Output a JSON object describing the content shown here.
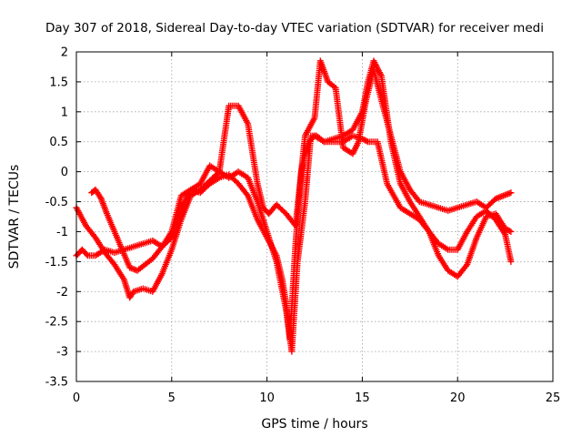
{
  "chart_data": {
    "type": "scatter",
    "title": "Day 307 of 2018, Sidereal Day-to-day VTEC variation (SDTVAR) for receiver medi",
    "xlabel": "GPS time / hours",
    "ylabel": "SDTVAR / TECUs",
    "xlim": [
      0,
      25
    ],
    "ylim": [
      -3.5,
      2
    ],
    "xticks": [
      "0",
      "5",
      "10",
      "15",
      "20",
      "25"
    ],
    "yticks": [
      "-3.5",
      "-3",
      "-2.5",
      "-2",
      "-1.5",
      "-1",
      "-0.5",
      "0",
      "0.5",
      "1",
      "1.5",
      "2"
    ],
    "grid": true,
    "marker": "+",
    "color": "#ff0000",
    "series": [
      {
        "x": [
          0.0,
          0.3,
          0.6,
          1.0,
          1.5,
          2.0,
          2.5,
          3.0,
          3.5,
          4.0,
          4.5,
          5.0,
          5.5,
          6.0,
          6.5,
          7.0,
          7.5,
          8.0,
          8.5,
          9.0,
          9.5,
          10.0,
          10.5,
          10.8,
          11.0,
          11.2,
          11.5,
          11.8,
          12.0,
          12.2,
          12.5,
          13.0,
          13.5,
          14.0,
          14.5,
          15.0,
          15.3,
          15.6,
          16.0,
          16.5,
          17.0,
          17.5,
          18.0,
          18.5,
          19.0,
          19.5,
          20.0,
          20.5,
          21.0,
          21.5,
          22.0,
          22.5,
          22.8
        ],
        "y": [
          -1.4,
          -1.3,
          -1.4,
          -1.4,
          -1.3,
          -1.35,
          -1.3,
          -1.25,
          -1.2,
          -1.15,
          -1.25,
          -1.1,
          -0.6,
          -0.3,
          -0.35,
          -0.2,
          -0.1,
          -0.05,
          -0.2,
          -0.4,
          -0.8,
          -1.1,
          -1.4,
          -1.8,
          -2.2,
          -2.8,
          -1.2,
          0.0,
          0.3,
          0.5,
          0.6,
          0.5,
          0.55,
          0.6,
          0.7,
          1.0,
          1.5,
          1.85,
          1.6,
          0.5,
          -0.2,
          -0.5,
          -0.75,
          -1.0,
          -1.4,
          -1.65,
          -1.75,
          -1.55,
          -1.1,
          -0.75,
          -0.7,
          -0.95,
          -1.0
        ]
      },
      {
        "x": [
          0.0,
          0.5,
          1.0,
          1.5,
          2.0,
          2.5,
          2.8,
          3.0,
          3.5,
          4.0,
          4.5,
          5.0,
          5.5,
          6.0,
          6.5,
          7.0,
          7.5,
          8.0,
          8.5,
          9.0,
          9.5,
          10.0,
          10.5,
          11.0,
          11.3,
          11.6,
          12.0,
          12.3,
          12.6,
          13.0,
          13.5,
          14.0,
          14.5,
          15.0,
          15.3,
          15.8,
          16.3,
          17.0,
          17.5,
          18.0,
          18.5,
          19.0,
          19.5,
          20.0,
          20.5,
          21.0,
          21.5,
          22.0,
          22.5,
          22.8
        ],
        "y": [
          -0.6,
          -0.9,
          -1.1,
          -1.35,
          -1.55,
          -1.8,
          -2.1,
          -2.0,
          -1.95,
          -2.0,
          -1.7,
          -1.3,
          -0.8,
          -0.4,
          -0.3,
          -0.15,
          0.0,
          -0.1,
          0.0,
          -0.1,
          -0.5,
          -1.0,
          -1.5,
          -2.3,
          -3.0,
          -1.5,
          -0.5,
          0.6,
          0.6,
          0.5,
          0.5,
          0.5,
          0.6,
          0.55,
          0.5,
          0.5,
          -0.2,
          -0.6,
          -0.7,
          -0.8,
          -1.0,
          -1.2,
          -1.3,
          -1.3,
          -1.0,
          -0.75,
          -0.65,
          -0.8,
          -1.05,
          -1.5
        ]
      },
      {
        "x": [
          0.8,
          1.0,
          1.3,
          1.6,
          2.0,
          2.4,
          2.8,
          3.2,
          3.6,
          4.0,
          4.5,
          5.0,
          5.5,
          6.0,
          6.5,
          7.0,
          7.5,
          8.0,
          8.5,
          9.0,
          9.5,
          9.8,
          10.1,
          10.5,
          11.0,
          11.5,
          12.0,
          12.5,
          12.8,
          13.2,
          13.6,
          14.0,
          14.5,
          14.8,
          15.2,
          15.6,
          16.0,
          16.5,
          17.0,
          17.5,
          18.0,
          18.5,
          19.0,
          19.5,
          20.0,
          20.5,
          21.0,
          21.5,
          22.0,
          22.4,
          22.8
        ],
        "y": [
          -0.35,
          -0.3,
          -0.45,
          -0.7,
          -1.0,
          -1.3,
          -1.6,
          -1.65,
          -1.55,
          -1.45,
          -1.25,
          -1.0,
          -0.4,
          -0.3,
          -0.2,
          0.1,
          0.0,
          1.1,
          1.1,
          0.8,
          -0.2,
          -0.6,
          -0.7,
          -0.55,
          -0.7,
          -0.9,
          0.6,
          0.9,
          1.85,
          1.5,
          1.4,
          0.4,
          0.3,
          0.5,
          1.2,
          1.7,
          1.2,
          0.6,
          0.0,
          -0.3,
          -0.5,
          -0.55,
          -0.6,
          -0.65,
          -0.6,
          -0.55,
          -0.5,
          -0.6,
          -0.45,
          -0.4,
          -0.35
        ]
      }
    ]
  }
}
